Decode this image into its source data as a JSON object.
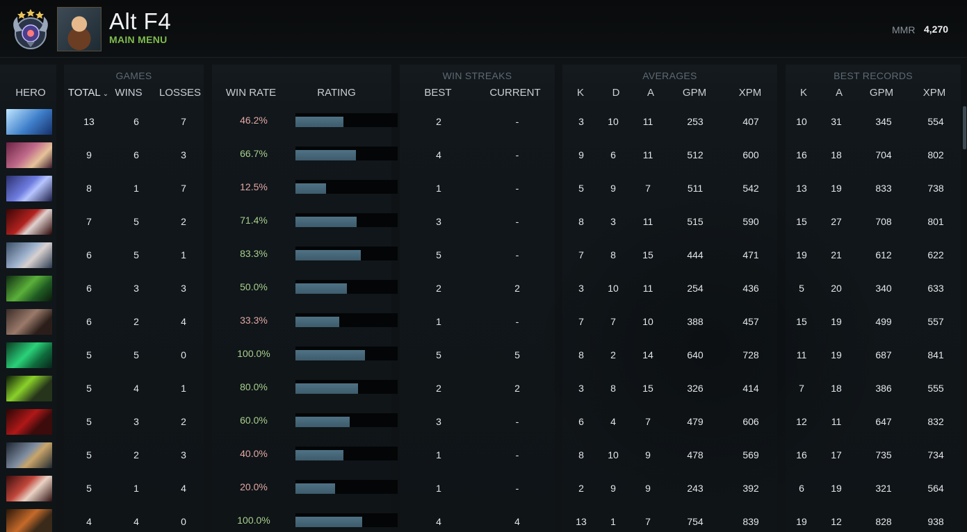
{
  "header": {
    "player_name": "Alt F4",
    "status": "MAIN MENU",
    "mmr_label": "MMR",
    "mmr_value": "4,270",
    "medal_icon": "rank-medal-icon",
    "portrait_icon": "hero-portrait-icon"
  },
  "groups": {
    "games": "GAMES",
    "win_streaks": "WIN STREAKS",
    "averages": "AVERAGES",
    "best_records": "BEST RECORDS"
  },
  "columns": {
    "hero": "HERO",
    "total": "TOTAL",
    "wins": "WINS",
    "losses": "LOSSES",
    "win_rate": "WIN RATE",
    "rating": "RATING",
    "best": "BEST",
    "current": "CURRENT",
    "avg_k": "K",
    "avg_d": "D",
    "avg_a": "A",
    "avg_gpm": "GPM",
    "avg_xpm": "XPM",
    "best_k": "K",
    "best_a": "A",
    "best_gpm": "GPM",
    "best_xpm": "XPM"
  },
  "colors": {
    "positive": "#a8d08d",
    "negative": "#e3a9a5",
    "status": "#7fbd4e"
  },
  "rows": [
    {
      "hero_icon": "crystal-maiden-icon",
      "total": "13",
      "wins": "6",
      "losses": "7",
      "win_rate": "46.2%",
      "rating_fraction": 0.47,
      "best": "2",
      "current": "-",
      "k": "3",
      "d": "10",
      "a": "11",
      "gpm": "253",
      "xpm": "407",
      "bk": "10",
      "ba": "31",
      "bgpm": "345",
      "bxpm": "554"
    },
    {
      "hero_icon": "invoker-icon",
      "total": "9",
      "wins": "6",
      "losses": "3",
      "win_rate": "66.7%",
      "rating_fraction": 0.59,
      "best": "4",
      "current": "-",
      "k": "9",
      "d": "6",
      "a": "11",
      "gpm": "512",
      "xpm": "600",
      "bk": "16",
      "ba": "18",
      "bgpm": "704",
      "bxpm": "802"
    },
    {
      "hero_icon": "faceless-void-icon",
      "total": "8",
      "wins": "1",
      "losses": "7",
      "win_rate": "12.5%",
      "rating_fraction": 0.3,
      "best": "1",
      "current": "-",
      "k": "5",
      "d": "9",
      "a": "7",
      "gpm": "511",
      "xpm": "542",
      "bk": "13",
      "ba": "19",
      "bgpm": "833",
      "bxpm": "738"
    },
    {
      "hero_icon": "queen-of-pain-icon",
      "total": "7",
      "wins": "5",
      "losses": "2",
      "win_rate": "71.4%",
      "rating_fraction": 0.6,
      "best": "3",
      "current": "-",
      "k": "8",
      "d": "3",
      "a": "11",
      "gpm": "515",
      "xpm": "590",
      "bk": "15",
      "ba": "27",
      "bgpm": "708",
      "bxpm": "801"
    },
    {
      "hero_icon": "mirana-icon",
      "total": "6",
      "wins": "5",
      "losses": "1",
      "win_rate": "83.3%",
      "rating_fraction": 0.64,
      "best": "5",
      "current": "-",
      "k": "7",
      "d": "8",
      "a": "15",
      "gpm": "444",
      "xpm": "471",
      "bk": "19",
      "ba": "21",
      "bgpm": "612",
      "bxpm": "622"
    },
    {
      "hero_icon": "juggernaut-icon",
      "total": "6",
      "wins": "3",
      "losses": "3",
      "win_rate": "50.0%",
      "rating_fraction": 0.5,
      "best": "2",
      "current": "2",
      "k": "3",
      "d": "10",
      "a": "11",
      "gpm": "254",
      "xpm": "436",
      "bk": "5",
      "ba": "20",
      "bgpm": "340",
      "bxpm": "633"
    },
    {
      "hero_icon": "monkey-king-icon",
      "total": "6",
      "wins": "2",
      "losses": "4",
      "win_rate": "33.3%",
      "rating_fraction": 0.43,
      "best": "1",
      "current": "-",
      "k": "7",
      "d": "7",
      "a": "10",
      "gpm": "388",
      "xpm": "457",
      "bk": "15",
      "ba": "19",
      "bgpm": "499",
      "bxpm": "557"
    },
    {
      "hero_icon": "underlord-icon",
      "total": "5",
      "wins": "5",
      "losses": "0",
      "win_rate": "100.0%",
      "rating_fraction": 0.68,
      "best": "5",
      "current": "5",
      "k": "8",
      "d": "2",
      "a": "14",
      "gpm": "640",
      "xpm": "728",
      "bk": "11",
      "ba": "19",
      "bgpm": "687",
      "bxpm": "841"
    },
    {
      "hero_icon": "rubick-icon",
      "total": "5",
      "wins": "4",
      "losses": "1",
      "win_rate": "80.0%",
      "rating_fraction": 0.61,
      "best": "2",
      "current": "2",
      "k": "3",
      "d": "8",
      "a": "15",
      "gpm": "326",
      "xpm": "414",
      "bk": "7",
      "ba": "18",
      "bgpm": "386",
      "bxpm": "555"
    },
    {
      "hero_icon": "doom-icon",
      "total": "5",
      "wins": "3",
      "losses": "2",
      "win_rate": "60.0%",
      "rating_fraction": 0.53,
      "best": "3",
      "current": "-",
      "k": "6",
      "d": "4",
      "a": "7",
      "gpm": "479",
      "xpm": "606",
      "bk": "12",
      "ba": "11",
      "bgpm": "647",
      "bxpm": "832"
    },
    {
      "hero_icon": "tinker-icon",
      "total": "5",
      "wins": "2",
      "losses": "3",
      "win_rate": "40.0%",
      "rating_fraction": 0.47,
      "best": "1",
      "current": "-",
      "k": "8",
      "d": "10",
      "a": "9",
      "gpm": "478",
      "xpm": "569",
      "bk": "16",
      "ba": "17",
      "bgpm": "735",
      "bxpm": "734"
    },
    {
      "hero_icon": "bloodseeker-icon",
      "total": "5",
      "wins": "1",
      "losses": "4",
      "win_rate": "20.0%",
      "rating_fraction": 0.39,
      "best": "1",
      "current": "-",
      "k": "2",
      "d": "9",
      "a": "9",
      "gpm": "243",
      "xpm": "392",
      "bk": "6",
      "ba": "19",
      "bgpm": "321",
      "bxpm": "564"
    },
    {
      "hero_icon": "anti-mage-icon",
      "total": "4",
      "wins": "4",
      "losses": "0",
      "win_rate": "100.0%",
      "rating_fraction": 0.65,
      "best": "4",
      "current": "4",
      "k": "13",
      "d": "1",
      "a": "7",
      "gpm": "754",
      "xpm": "839",
      "bk": "19",
      "ba": "12",
      "bgpm": "828",
      "bxpm": "938"
    }
  ]
}
